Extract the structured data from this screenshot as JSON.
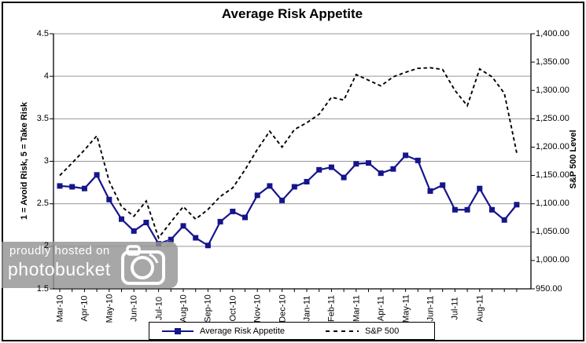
{
  "title": "Average Risk Appetite",
  "watermark": {
    "line1": "proudly hosted on",
    "line2": "photobucket",
    "registered": "®"
  },
  "chart_data": {
    "type": "line",
    "title": "Average Risk Appetite",
    "grid": "horizontal",
    "legend_position": "bottom",
    "x_tick_labels": [
      "Mar-10",
      "Apr-10",
      "May-10",
      "Jun-10",
      "Jul-10",
      "Aug-10",
      "Sep-10",
      "Oct-10",
      "Nov-10",
      "Dec-10",
      "Jan-11",
      "Feb-11",
      "Mar-11",
      "Apr-11",
      "May-11",
      "Jun-11",
      "Jul-11",
      "Aug-11"
    ],
    "left_axis": {
      "label": "1 = Avoid Risk, 5 = Take Risk",
      "min": 1.5,
      "max": 4.5,
      "step": 0.5,
      "tick_labels": [
        "4.5",
        "4",
        "3.5",
        "3",
        "2.5",
        "2",
        "1.5"
      ]
    },
    "right_axis": {
      "label": "S&P 500 Level",
      "min": 950,
      "max": 1400,
      "step": 50,
      "tick_labels": [
        "1,400.00",
        "1,350.00",
        "1,300.00",
        "1,250.00",
        "1,200.00",
        "1,150.00",
        "1,100.00",
        "1,050.00",
        "1,000.00",
        "950.00"
      ]
    },
    "series": [
      {
        "name": "Average Risk Appetite",
        "axis": "left",
        "color": "#15158C",
        "style": "solid",
        "marker": "square",
        "values": [
          2.71,
          2.7,
          2.68,
          2.84,
          2.55,
          2.32,
          2.18,
          2.28,
          2.03,
          2.08,
          2.24,
          2.1,
          2.01,
          2.29,
          2.41,
          2.34,
          2.6,
          2.71,
          2.54,
          2.7,
          2.76,
          2.9,
          2.93,
          2.81,
          2.97,
          2.98,
          2.86,
          2.91,
          3.07,
          3.01,
          2.65,
          2.72,
          2.43,
          2.43,
          2.68,
          2.43,
          2.31,
          2.49
        ]
      },
      {
        "name": "S&P 500",
        "axis": "right",
        "color": "#000000",
        "style": "dashed",
        "marker": "none",
        "values": [
          1150,
          1172,
          1195,
          1220,
          1140,
          1095,
          1078,
          1105,
          1040,
          1068,
          1095,
          1073,
          1090,
          1113,
          1128,
          1160,
          1196,
          1228,
          1200,
          1231,
          1243,
          1258,
          1288,
          1283,
          1328,
          1318,
          1308,
          1324,
          1332,
          1339,
          1340,
          1337,
          1300,
          1273,
          1338,
          1324,
          1295,
          1190
        ]
      }
    ]
  }
}
